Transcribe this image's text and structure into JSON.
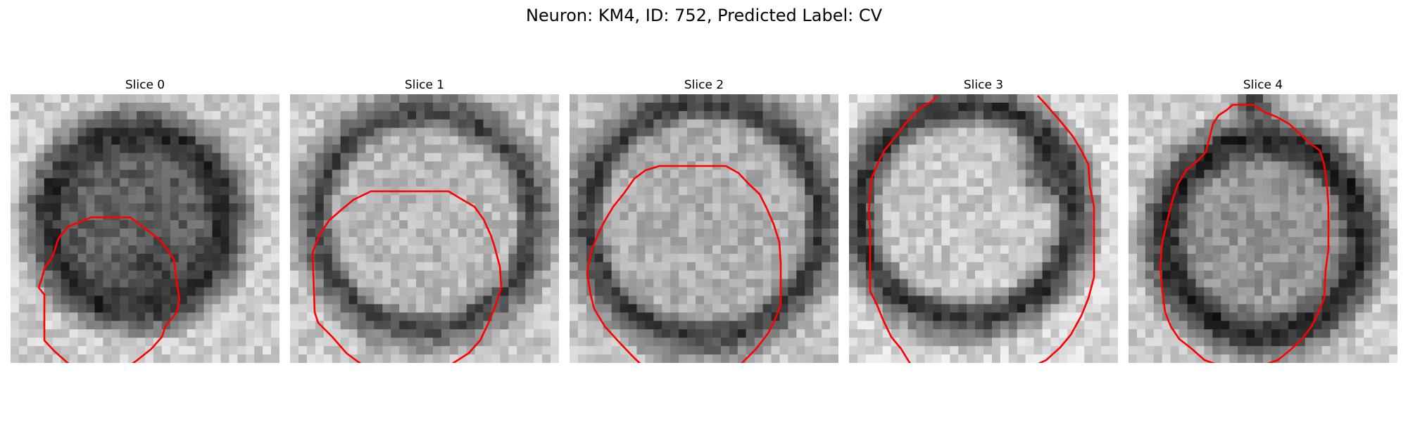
{
  "figure": {
    "title": "Neuron: KM4, ID: 752, Predicted Label: CV"
  },
  "panels": [
    {
      "title": "Slice 0",
      "contour_color": "#ff0000"
    },
    {
      "title": "Slice 1",
      "contour_color": "#ff0000"
    },
    {
      "title": "Slice 2",
      "contour_color": "#ff0000"
    },
    {
      "title": "Slice 3",
      "contour_color": "#ff0000"
    },
    {
      "title": "Slice 4",
      "contour_color": "#ff0000"
    }
  ]
}
